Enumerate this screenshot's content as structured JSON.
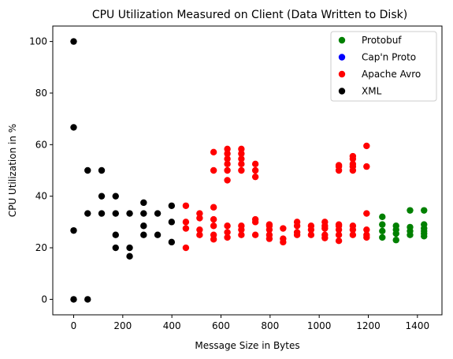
{
  "chart_data": {
    "type": "scatter",
    "title": "CPU Utilization Measured on Client (Data Written to Disk)",
    "xlabel": "Message Size in Bytes",
    "ylabel": "CPU Utilization in %",
    "xlim": [
      -85,
      1500
    ],
    "ylim": [
      -6,
      106
    ],
    "xticks": [
      0,
      200,
      400,
      600,
      800,
      1000,
      1200,
      1400
    ],
    "yticks": [
      0,
      20,
      40,
      60,
      80,
      100
    ],
    "grid": false,
    "legend_position": "top-right",
    "series": [
      {
        "name": "Protobuf",
        "color": "#008000",
        "points": [
          [
            1257,
            24
          ],
          [
            1257,
            26.5
          ],
          [
            1257,
            29
          ],
          [
            1257,
            32
          ],
          [
            1313,
            23
          ],
          [
            1313,
            25.5
          ],
          [
            1313,
            27
          ],
          [
            1313,
            28.5
          ],
          [
            1370,
            25
          ],
          [
            1370,
            26.5
          ],
          [
            1370,
            28
          ],
          [
            1370,
            34.5
          ],
          [
            1427,
            24.5
          ],
          [
            1427,
            25.5
          ],
          [
            1427,
            26.5
          ],
          [
            1427,
            27.5
          ],
          [
            1427,
            29
          ],
          [
            1427,
            34.5
          ]
        ]
      },
      {
        "name": "Cap'n Proto",
        "color": "#0000ff",
        "points": []
      },
      {
        "name": "Apache Avro",
        "color": "#ff0000",
        "points": [
          [
            457,
            20
          ],
          [
            457,
            27.5
          ],
          [
            457,
            30
          ],
          [
            457,
            36.3
          ],
          [
            513,
            25
          ],
          [
            513,
            27
          ],
          [
            513,
            31.5
          ],
          [
            513,
            33.3
          ],
          [
            570,
            23.3
          ],
          [
            570,
            25
          ],
          [
            570,
            28.5
          ],
          [
            570,
            31
          ],
          [
            570,
            35.7
          ],
          [
            570,
            50
          ],
          [
            570,
            57.1
          ],
          [
            626,
            24
          ],
          [
            626,
            26
          ],
          [
            626,
            28.5
          ],
          [
            626,
            46.2
          ],
          [
            626,
            50
          ],
          [
            626,
            52.5
          ],
          [
            626,
            54.5
          ],
          [
            626,
            56.5
          ],
          [
            626,
            58.3
          ],
          [
            683,
            25
          ],
          [
            683,
            27
          ],
          [
            683,
            28.5
          ],
          [
            683,
            50
          ],
          [
            683,
            52.5
          ],
          [
            683,
            54.5
          ],
          [
            683,
            56.5
          ],
          [
            683,
            58.3
          ],
          [
            740,
            25
          ],
          [
            740,
            30
          ],
          [
            740,
            31
          ],
          [
            740,
            47.5
          ],
          [
            740,
            50
          ],
          [
            740,
            52.5
          ],
          [
            797,
            23.5
          ],
          [
            797,
            25
          ],
          [
            797,
            27
          ],
          [
            797,
            28.5
          ],
          [
            797,
            29
          ],
          [
            853,
            22.2
          ],
          [
            853,
            23.5
          ],
          [
            853,
            27.5
          ],
          [
            910,
            25
          ],
          [
            910,
            26
          ],
          [
            910,
            28.5
          ],
          [
            910,
            30
          ],
          [
            967,
            25
          ],
          [
            967,
            27
          ],
          [
            967,
            28.5
          ],
          [
            1023,
            23.8
          ],
          [
            1023,
            25
          ],
          [
            1023,
            27.5
          ],
          [
            1023,
            28.5
          ],
          [
            1023,
            30
          ],
          [
            1080,
            22.7
          ],
          [
            1080,
            25
          ],
          [
            1080,
            27
          ],
          [
            1080,
            28.5
          ],
          [
            1080,
            29
          ],
          [
            1080,
            50
          ],
          [
            1080,
            51.5
          ],
          [
            1080,
            52
          ],
          [
            1137,
            25
          ],
          [
            1137,
            27
          ],
          [
            1137,
            28.5
          ],
          [
            1137,
            50
          ],
          [
            1137,
            51.5
          ],
          [
            1137,
            52.5
          ],
          [
            1137,
            54.5
          ],
          [
            1137,
            55.5
          ],
          [
            1193,
            24
          ],
          [
            1193,
            25
          ],
          [
            1193,
            27
          ],
          [
            1193,
            33.3
          ],
          [
            1193,
            51.5
          ],
          [
            1193,
            59.5
          ]
        ]
      },
      {
        "name": "XML",
        "color": "#000000",
        "points": [
          [
            0,
            0
          ],
          [
            0,
            26.7
          ],
          [
            0,
            66.7
          ],
          [
            0,
            100
          ],
          [
            57,
            0
          ],
          [
            57,
            33.3
          ],
          [
            57,
            50
          ],
          [
            114,
            33.3
          ],
          [
            114,
            40
          ],
          [
            114,
            50
          ],
          [
            171,
            20
          ],
          [
            171,
            25
          ],
          [
            171,
            33.3
          ],
          [
            171,
            40
          ],
          [
            228,
            16.7
          ],
          [
            228,
            20
          ],
          [
            228,
            33.3
          ],
          [
            285,
            25
          ],
          [
            285,
            28.5
          ],
          [
            285,
            33.3
          ],
          [
            285,
            37.5
          ],
          [
            342,
            25
          ],
          [
            342,
            33.3
          ],
          [
            399,
            22.2
          ],
          [
            399,
            30
          ],
          [
            399,
            36.3
          ]
        ]
      }
    ]
  }
}
